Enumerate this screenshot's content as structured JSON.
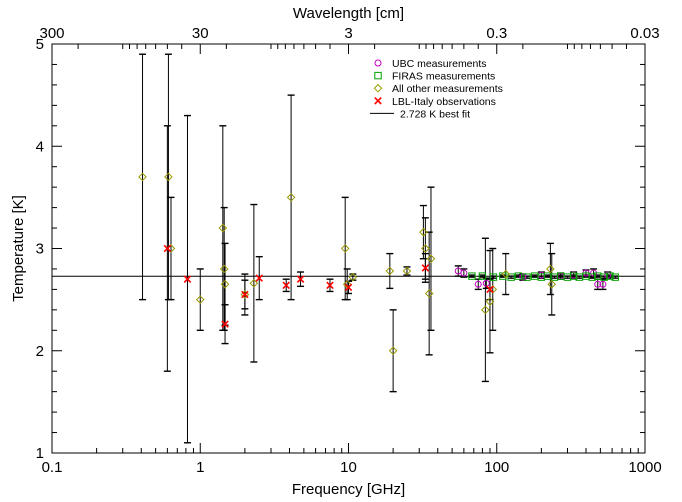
{
  "chart_data": {
    "type": "scatter",
    "xlabel": "Frequency [GHz]",
    "ylabel": "Temperature [K]",
    "top_axis_label": "Wavelength [cm]",
    "x_scale": "log",
    "xlim": [
      0.1,
      1000
    ],
    "ylim": [
      1,
      5
    ],
    "x_ticks": [
      {
        "v": 0.1,
        "label": "0.1"
      },
      {
        "v": 1,
        "label": "1"
      },
      {
        "v": 10,
        "label": "10"
      },
      {
        "v": 100,
        "label": "100"
      },
      {
        "v": 1000,
        "label": "1000"
      }
    ],
    "y_ticks": [
      {
        "v": 1,
        "label": "1"
      },
      {
        "v": 2,
        "label": "2"
      },
      {
        "v": 3,
        "label": "3"
      },
      {
        "v": 4,
        "label": "4"
      },
      {
        "v": 5,
        "label": "5"
      }
    ],
    "top_ticks": [
      {
        "v": 300,
        "label": "300"
      },
      {
        "v": 30,
        "label": "30"
      },
      {
        "v": 3,
        "label": "3"
      },
      {
        "v": 0.3,
        "label": "0.3"
      },
      {
        "v": 0.03,
        "label": "0.03"
      }
    ],
    "legend_position": "top-right",
    "grid": false,
    "series": [
      {
        "name": "UBC measurements",
        "marker": "circle",
        "color": "#c000c0",
        "points": [
          {
            "x": 55,
            "y": 2.78,
            "err": 0.05
          },
          {
            "x": 60,
            "y": 2.76,
            "err": 0.04
          },
          {
            "x": 75,
            "y": 2.65,
            "err": 0.05
          },
          {
            "x": 85,
            "y": 2.66,
            "err": 0.05
          },
          {
            "x": 150,
            "y": 2.72,
            "err": 0.03
          },
          {
            "x": 200,
            "y": 2.74,
            "err": 0.03
          },
          {
            "x": 270,
            "y": 2.73,
            "err": 0.03
          },
          {
            "x": 330,
            "y": 2.74,
            "err": 0.03
          },
          {
            "x": 400,
            "y": 2.76,
            "err": 0.03
          },
          {
            "x": 450,
            "y": 2.76,
            "err": 0.04
          },
          {
            "x": 480,
            "y": 2.65,
            "err": 0.05
          },
          {
            "x": 520,
            "y": 2.65,
            "err": 0.05
          },
          {
            "x": 560,
            "y": 2.74,
            "err": 0.03
          }
        ]
      },
      {
        "name": "FIRAS measurements",
        "marker": "square",
        "color": "#00a000",
        "points": [
          {
            "x": 68,
            "y": 2.73,
            "err": 0.01
          },
          {
            "x": 80,
            "y": 2.73,
            "err": 0.01
          },
          {
            "x": 95,
            "y": 2.72,
            "err": 0.01
          },
          {
            "x": 110,
            "y": 2.73,
            "err": 0.01
          },
          {
            "x": 125,
            "y": 2.72,
            "err": 0.01
          },
          {
            "x": 140,
            "y": 2.73,
            "err": 0.01
          },
          {
            "x": 160,
            "y": 2.72,
            "err": 0.01
          },
          {
            "x": 180,
            "y": 2.73,
            "err": 0.01
          },
          {
            "x": 200,
            "y": 2.72,
            "err": 0.01
          },
          {
            "x": 220,
            "y": 2.73,
            "err": 0.01
          },
          {
            "x": 245,
            "y": 2.72,
            "err": 0.01
          },
          {
            "x": 270,
            "y": 2.73,
            "err": 0.01
          },
          {
            "x": 300,
            "y": 2.72,
            "err": 0.01
          },
          {
            "x": 330,
            "y": 2.73,
            "err": 0.01
          },
          {
            "x": 360,
            "y": 2.72,
            "err": 0.01
          },
          {
            "x": 400,
            "y": 2.73,
            "err": 0.01
          },
          {
            "x": 440,
            "y": 2.72,
            "err": 0.01
          },
          {
            "x": 480,
            "y": 2.73,
            "err": 0.01
          },
          {
            "x": 530,
            "y": 2.72,
            "err": 0.01
          },
          {
            "x": 580,
            "y": 2.73,
            "err": 0.01
          },
          {
            "x": 630,
            "y": 2.72,
            "err": 0.01
          }
        ]
      },
      {
        "name": "All other measurements",
        "marker": "diamond",
        "color": "#999900",
        "points": [
          {
            "x": 0.408,
            "y": 3.7,
            "err": 1.2
          },
          {
            "x": 0.61,
            "y": 3.7,
            "err": 1.2
          },
          {
            "x": 0.635,
            "y": 3.0,
            "err": 0.5
          },
          {
            "x": 1.0,
            "y": 2.5,
            "err": 0.3
          },
          {
            "x": 1.42,
            "y": 3.2,
            "err": 1.0
          },
          {
            "x": 1.45,
            "y": 2.8,
            "err": 0.6
          },
          {
            "x": 1.47,
            "y": 2.65,
            "err": 0.4
          },
          {
            "x": 2.0,
            "y": 2.55,
            "err": 0.2
          },
          {
            "x": 2.3,
            "y": 2.66,
            "err": 0.77
          },
          {
            "x": 4.1,
            "y": 3.5,
            "err": 1.0
          },
          {
            "x": 9.5,
            "y": 3.0,
            "err": 0.5
          },
          {
            "x": 9.8,
            "y": 2.65,
            "err": 0.15
          },
          {
            "x": 10.7,
            "y": 2.72,
            "err": 0.03
          },
          {
            "x": 19,
            "y": 2.78,
            "err": 0.17
          },
          {
            "x": 20,
            "y": 2.0,
            "err": 0.4
          },
          {
            "x": 24.8,
            "y": 2.78,
            "err": 0.04
          },
          {
            "x": 32,
            "y": 3.16,
            "err": 0.26
          },
          {
            "x": 33,
            "y": 3.0,
            "err": 0.3
          },
          {
            "x": 35,
            "y": 2.56,
            "err": 0.6
          },
          {
            "x": 36,
            "y": 2.9,
            "err": 0.7
          },
          {
            "x": 83.8,
            "y": 2.4,
            "err": 0.7
          },
          {
            "x": 90,
            "y": 2.48,
            "err": 0.5
          },
          {
            "x": 94,
            "y": 2.6,
            "err": 0.4
          },
          {
            "x": 115,
            "y": 2.75,
            "err": 0.2
          },
          {
            "x": 230,
            "y": 2.8,
            "err": 0.25
          },
          {
            "x": 235,
            "y": 2.65,
            "err": 0.3
          }
        ]
      },
      {
        "name": "LBL-Italy observations",
        "marker": "x",
        "color": "#ff0000",
        "points": [
          {
            "x": 0.6,
            "y": 3.0,
            "err": 1.2
          },
          {
            "x": 0.82,
            "y": 2.7,
            "err": 1.6
          },
          {
            "x": 1.47,
            "y": 2.26,
            "err": 0.19
          },
          {
            "x": 2.0,
            "y": 2.55,
            "err": 0.14
          },
          {
            "x": 2.5,
            "y": 2.71,
            "err": 0.21
          },
          {
            "x": 3.8,
            "y": 2.64,
            "err": 0.06
          },
          {
            "x": 4.75,
            "y": 2.7,
            "err": 0.07
          },
          {
            "x": 7.5,
            "y": 2.64,
            "err": 0.06
          },
          {
            "x": 10,
            "y": 2.62,
            "err": 0.06
          },
          {
            "x": 33,
            "y": 2.81,
            "err": 0.14
          },
          {
            "x": 90,
            "y": 2.6,
            "err": 0.1
          }
        ]
      }
    ],
    "fit": {
      "label": "2.728 K best fit",
      "value": 2.728
    }
  }
}
